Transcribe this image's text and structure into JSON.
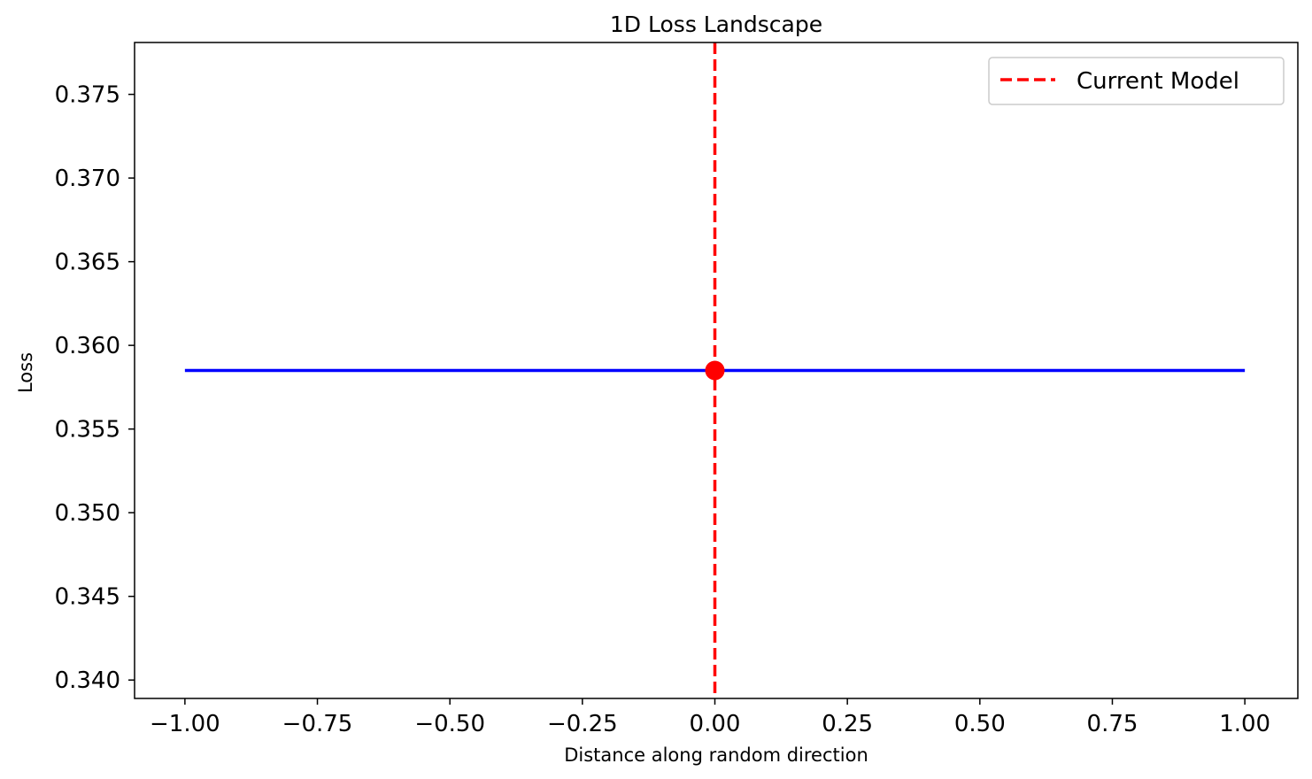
{
  "chart_data": {
    "type": "line",
    "title": "1D Loss Landscape",
    "xlabel": "Distance along random direction",
    "ylabel": "Loss",
    "xlim": [
      -1.095,
      1.1
    ],
    "ylim": [
      0.3389,
      0.3781
    ],
    "xticks": [
      -1.0,
      -0.75,
      -0.5,
      -0.25,
      0.0,
      0.25,
      0.5,
      0.75,
      1.0
    ],
    "xtick_labels": [
      "−1.00",
      "−0.75",
      "−0.50",
      "−0.25",
      "0.00",
      "0.25",
      "0.50",
      "0.75",
      "1.00"
    ],
    "yticks": [
      0.34,
      0.345,
      0.35,
      0.355,
      0.36,
      0.365,
      0.37,
      0.375
    ],
    "ytick_labels": [
      "0.340",
      "0.345",
      "0.350",
      "0.355",
      "0.360",
      "0.365",
      "0.370",
      "0.375"
    ],
    "grid": false,
    "series": [
      {
        "x": [
          -1.0,
          -0.5,
          0.0,
          0.5,
          1.0
        ],
        "y": [
          0.3585,
          0.3585,
          0.3585,
          0.3585,
          0.3585
        ],
        "color": "#0000ff",
        "style": "solid"
      }
    ],
    "current_point": {
      "x": 0.0,
      "y": 0.3585,
      "color": "#ff0000"
    },
    "vline": {
      "x": 0.0,
      "color": "#ff0000",
      "style": "dashed",
      "label": "Current Model"
    },
    "legend": {
      "position": "top-right",
      "entries": [
        {
          "label": "Current Model",
          "color": "#ff0000",
          "style": "dashed"
        }
      ]
    }
  }
}
